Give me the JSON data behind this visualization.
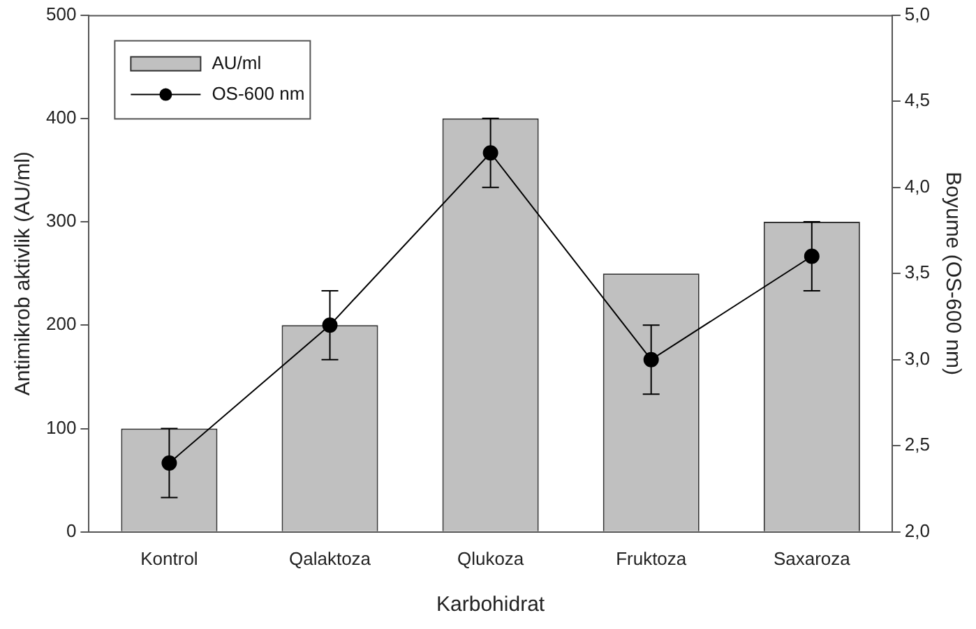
{
  "chart_data": {
    "type": "bar",
    "xlabel": "Karbohidrat",
    "ylabel": "Antimikrob aktivlik (AU/ml)",
    "y2label": "Boyume (OS-600 nm)",
    "categories": [
      "Kontrol",
      "Qalaktoza",
      "Qlukoza",
      "Fruktoza",
      "Saxaroza"
    ],
    "series": [
      {
        "name": "AU/ml",
        "color": "#c0c0c0",
        "values": [
          100,
          200,
          400,
          250,
          300
        ]
      },
      {
        "name": "OS-600 nm",
        "type": "line",
        "axis": "y2",
        "color": "#000000",
        "values": [
          2.4,
          3.2,
          4.2,
          3.0,
          3.6
        ],
        "errors": [
          0.2,
          0.2,
          0.2,
          0.2,
          0.2
        ],
        "marker": "circle",
        "line_style": "solid"
      }
    ],
    "ylim": [
      0,
      500
    ],
    "yticks": [
      0,
      100,
      200,
      300,
      400,
      500
    ],
    "y2lim": [
      2,
      5
    ],
    "y2ticks": [
      {
        "value": 2,
        "label": "2,0"
      },
      {
        "value": 2.5,
        "label": "2,5"
      },
      {
        "value": 3,
        "label": "3,0"
      },
      {
        "value": 3.5,
        "label": "3,5"
      },
      {
        "value": 4,
        "label": "4,0"
      },
      {
        "value": 4.5,
        "label": "4,5"
      },
      {
        "value": 5,
        "label": "5,0"
      }
    ],
    "grid": false,
    "legend": "top left"
  }
}
